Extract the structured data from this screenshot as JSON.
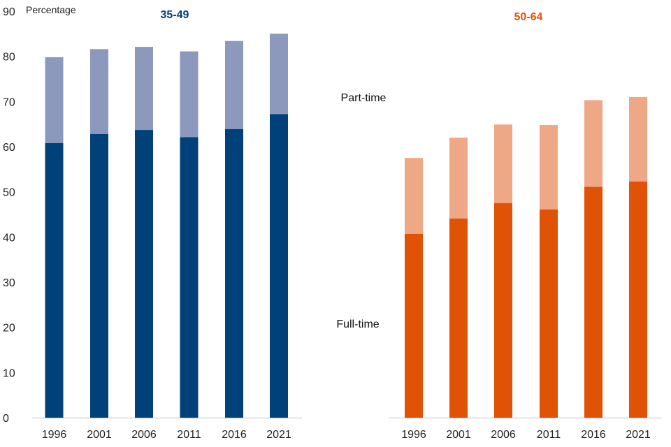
{
  "chart_data": {
    "type": "bar",
    "stacked": true,
    "y_unit_label": "Percentage",
    "ylim": [
      0,
      90
    ],
    "yticks": [
      0,
      10,
      20,
      30,
      40,
      50,
      60,
      70,
      80,
      90
    ],
    "categories": [
      "1996",
      "2001",
      "2006",
      "2011",
      "2016",
      "2021"
    ],
    "series_labels": {
      "part_time": "Part-time",
      "full_time": "Full-time"
    },
    "groups": [
      {
        "title": "35-49",
        "title_color": "#003f78",
        "full_time_color": "#00417a",
        "part_time_color": "#8c99bd",
        "full_time": [
          60.8,
          62.8,
          63.7,
          62.1,
          63.9,
          67.2
        ],
        "total": [
          79.8,
          81.6,
          82.1,
          81.1,
          83.4,
          85.0
        ]
      },
      {
        "title": "50-64",
        "title_color": "#e05206",
        "full_time_color": "#e05206",
        "part_time_color": "#efa886",
        "full_time": [
          40.7,
          44.1,
          47.5,
          46.1,
          51.1,
          52.3
        ],
        "total": [
          57.5,
          62.0,
          64.9,
          64.8,
          70.3,
          71.0
        ]
      }
    ]
  }
}
